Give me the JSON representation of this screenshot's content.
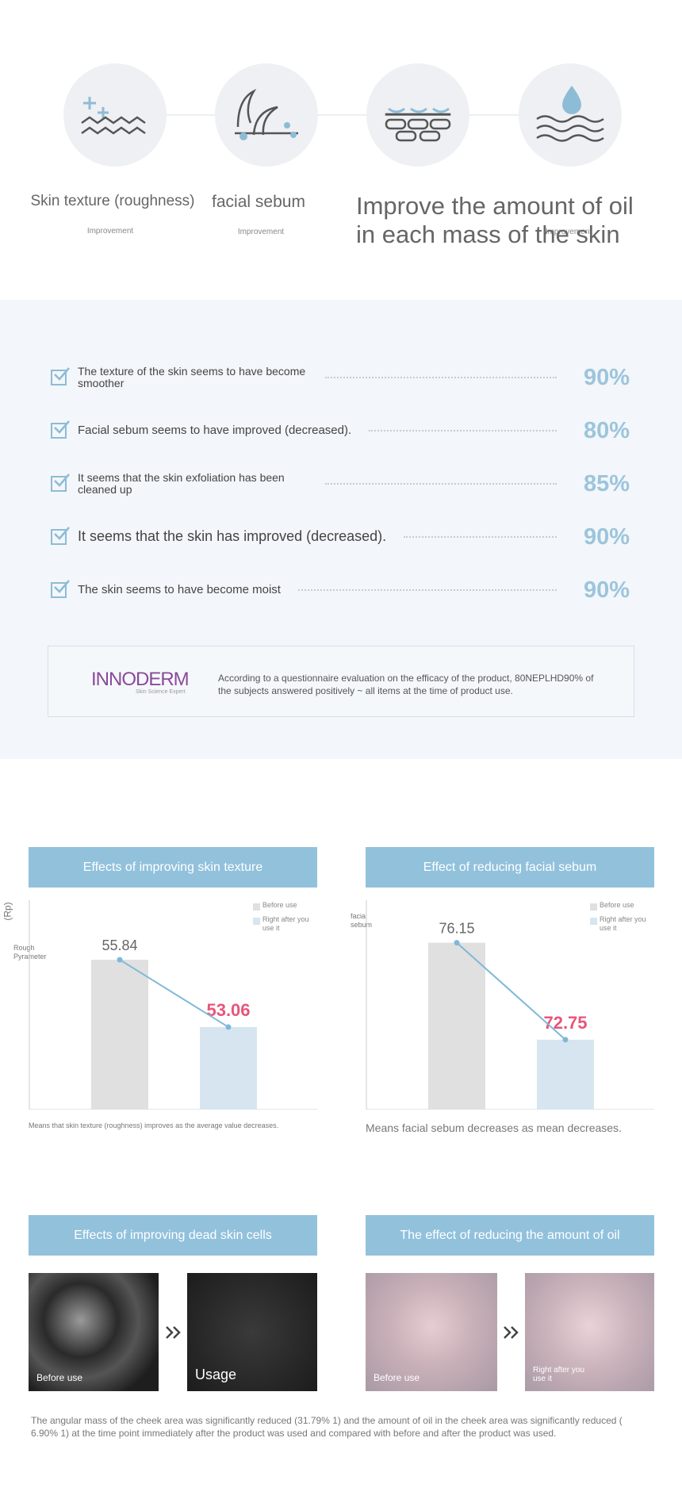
{
  "features": [
    {
      "label": "Skin texture (roughness)",
      "sub": "Improvement"
    },
    {
      "label": "facial sebum",
      "sub": "Improvement"
    },
    {
      "label": "Improve the amount of oil in each mass of the skin",
      "sub": "Improvement"
    }
  ],
  "survey": {
    "items": [
      {
        "text": "The texture of the skin seems to have become smoother",
        "percent": "90%"
      },
      {
        "text": "Facial sebum seems to have improved (decreased).",
        "percent": "80%"
      },
      {
        "text": "It seems that the skin exfoliation has been cleaned up",
        "percent": "85%"
      },
      {
        "text": "It seems that the skin has improved (decreased).",
        "percent": "90%"
      },
      {
        "text": "The skin seems to have become moist",
        "percent": "90%"
      }
    ],
    "logo": "INNODERM",
    "logo_sub": "Skin Science Expert",
    "note": "According to a questionnaire evaluation on the efficacy of the product, 80NEPLHD90% of the subjects answered positively ~ all items at the time of product use."
  },
  "chart_data": [
    {
      "type": "bar",
      "title": "Effects of improving skin texture",
      "ylabel_unit": "(Rp)",
      "ylabel": "Rough Pyrameter",
      "ylim": [
        49.65,
        58.3
      ],
      "series": [
        {
          "name": "Before use",
          "color": "#e0e0e0",
          "label_color": "#666666",
          "values": [
            55.84
          ]
        },
        {
          "name": "Right after you use it",
          "color": "#d6e5ef",
          "label_color": "#e8557a",
          "values": [
            53.06
          ]
        }
      ],
      "connector_color": "#7fb8d8",
      "note": "Means that skin texture (roughness) improves as the average value decreases."
    },
    {
      "type": "bar",
      "title": "Effect of reducing facial sebum",
      "ylabel": "facial sebum",
      "ylim": [
        70.3,
        77.64
      ],
      "series": [
        {
          "name": "Before use",
          "color": "#e0e0e0",
          "label_color": "#666666",
          "values": [
            76.15
          ]
        },
        {
          "name": "Right after you use it",
          "color": "#d6e5ef",
          "label_color": "#e8557a",
          "values": [
            72.75
          ]
        }
      ],
      "connector_color": "#7fb8d8",
      "note": "Means facial sebum decreases as mean decreases."
    }
  ],
  "photos": {
    "left_title": "Effects of improving dead skin cells",
    "right_title": "The effect of reducing the amount of oil",
    "labels": [
      "Before use",
      "Usage",
      "Before use",
      "Right after you use it"
    ],
    "footer": "The angular mass of the cheek area was significantly reduced (31.79% 1) and the amount of oil in the cheek area was significantly reduced ( 6.90% 1) at the time point immediately after the product was used and compared with before and after the product was used."
  }
}
